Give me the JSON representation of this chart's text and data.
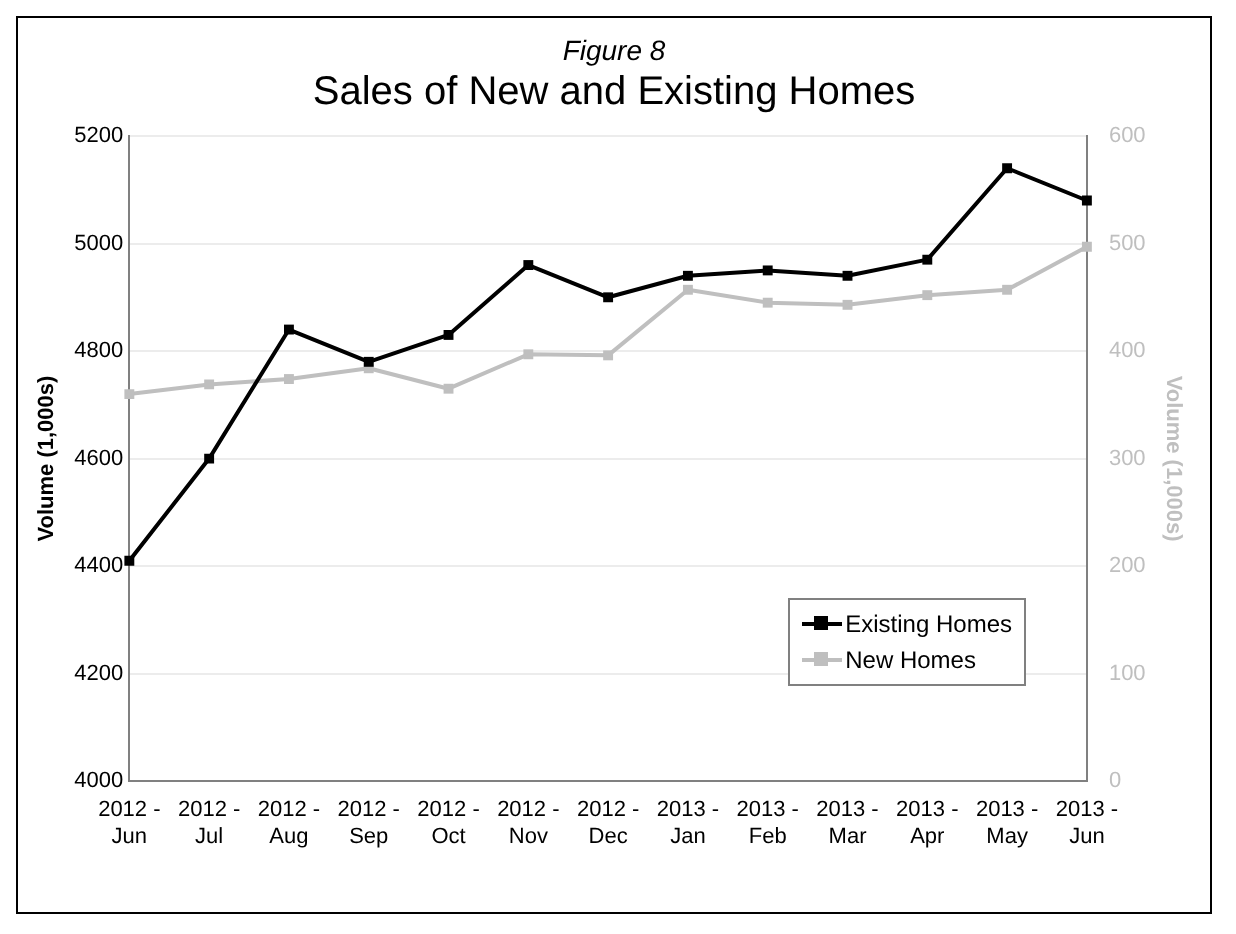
{
  "chart_data": {
    "type": "line",
    "subtitle": "Figure 8",
    "title": "Sales of New and Existing Homes",
    "ylabel": "Volume (1,000s)",
    "y2label": "Volume (1,000s)",
    "categories": [
      "2012 - Jun",
      "2012 - Jul",
      "2012 - Aug",
      "2012 - Sep",
      "2012 - Oct",
      "2012 - Nov",
      "2012 - Dec",
      "2013 - Jan",
      "2013 - Feb",
      "2013 - Mar",
      "2013 - Apr",
      "2013 - May",
      "2013 - Jun"
    ],
    "series": [
      {
        "name": "Existing Homes",
        "color": "#000000",
        "values": [
          4410,
          4600,
          4840,
          4780,
          4830,
          4960,
          4900,
          4940,
          4950,
          4940,
          4970,
          5140,
          5080
        ]
      },
      {
        "name": "New Homes",
        "color": "#bfbfbf",
        "axis": "y2",
        "values": [
          360,
          369,
          374,
          384,
          365,
          397,
          396,
          457,
          445,
          443,
          452,
          457,
          497
        ]
      }
    ],
    "ylim": [
      4000,
      5200
    ],
    "yticks": [
      4000,
      4200,
      4400,
      4600,
      4800,
      5000,
      5200
    ],
    "y2lim": [
      0,
      600
    ],
    "y2ticks": [
      0,
      100,
      200,
      300,
      400,
      500,
      600
    ],
    "grid": "y",
    "legend": "bottom right",
    "marker": "square",
    "line_style": "solid"
  }
}
